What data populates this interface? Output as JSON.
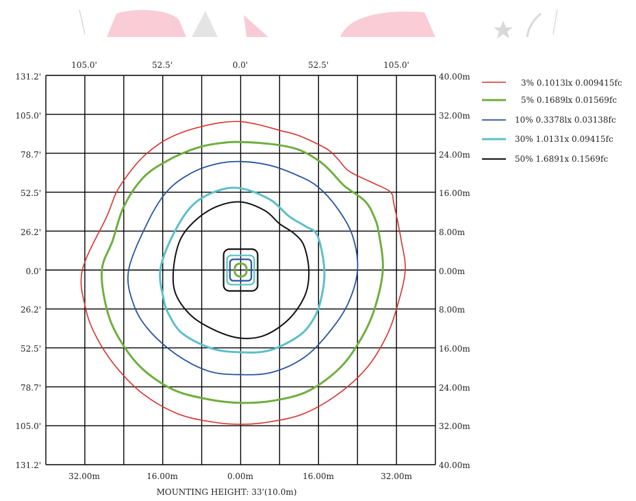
{
  "chart_data": {
    "type": "contour",
    "top_ticks": [
      "105.0'",
      "52.5'",
      "0.0'",
      "52.5'",
      "105.0'"
    ],
    "bottom_ticks": [
      "32.00m",
      "16.00m",
      "0.00m",
      "16.00m",
      "32.00m"
    ],
    "left_ticks": [
      "131.2'",
      "105.0'",
      "78.7'",
      "52.5'",
      "26.2'",
      "0.0'",
      "26.2'",
      "52.5'",
      "78.7'",
      "105.0'",
      "131.2'"
    ],
    "right_ticks": [
      "40.00m",
      "32.00m",
      "24.00m",
      "16.00m",
      "8.00m",
      "0.00m",
      "8.00m",
      "16.00m",
      "24.00m",
      "32.00m",
      "40.00m"
    ],
    "x_range_m": [
      -40,
      40
    ],
    "y_range_m": [
      -40,
      40
    ],
    "grid": true,
    "grid_step_m": 8,
    "xlabel": "MOUNTING HEIGHT: 33'(10.0m)",
    "legend_position": "top-right",
    "series": [
      {
        "name": "3% 0.1013lx 0.009415fc",
        "color": "#d9302b",
        "points": [
          [
            0,
            30.5
          ],
          [
            -4,
            30.3
          ],
          [
            -8,
            29.5
          ],
          [
            -12,
            28.3
          ],
          [
            -16,
            26.4
          ],
          [
            -20,
            23.3
          ],
          [
            -23,
            19.8
          ],
          [
            -25.5,
            16
          ],
          [
            -27.5,
            11
          ],
          [
            -32.5,
            0
          ],
          [
            -31.8,
            -8
          ],
          [
            -29.5,
            -14
          ],
          [
            -25.5,
            -20
          ],
          [
            -20,
            -25.5
          ],
          [
            -13,
            -29.5
          ],
          [
            -6,
            -31.2
          ],
          [
            0,
            -31.7
          ],
          [
            6,
            -31.2
          ],
          [
            13,
            -29.5
          ],
          [
            20,
            -25.5
          ],
          [
            26,
            -20
          ],
          [
            30,
            -13.5
          ],
          [
            32.3,
            -7
          ],
          [
            33.8,
            0
          ],
          [
            33,
            6
          ],
          [
            31.5,
            13.5
          ],
          [
            30.8,
            16
          ],
          [
            27.6,
            17.7
          ],
          [
            25,
            18.9
          ],
          [
            22,
            20.5
          ],
          [
            19.8,
            23
          ],
          [
            17.5,
            25
          ],
          [
            12,
            27.6
          ],
          [
            8,
            28.7
          ],
          [
            4,
            29.8
          ]
        ]
      },
      {
        "name": "5% 0.1689lx 0.01569fc",
        "color": "#6fae3e",
        "points": [
          [
            0,
            26.3
          ],
          [
            -4,
            26.1
          ],
          [
            -9,
            25.1
          ],
          [
            -15,
            22.5
          ],
          [
            -20,
            19
          ],
          [
            -24,
            13
          ],
          [
            -26.3,
            6
          ],
          [
            -28.5,
            0
          ],
          [
            -27.5,
            -8
          ],
          [
            -25,
            -14
          ],
          [
            -20.5,
            -20
          ],
          [
            -14,
            -24.5
          ],
          [
            -7,
            -26.5
          ],
          [
            0,
            -27.3
          ],
          [
            7,
            -26.8
          ],
          [
            14,
            -24.8
          ],
          [
            20.5,
            -20
          ],
          [
            24.8,
            -14
          ],
          [
            27.5,
            -8
          ],
          [
            29.2,
            0
          ],
          [
            28.4,
            7.5
          ],
          [
            27.4,
            11
          ],
          [
            25.5,
            14.2
          ],
          [
            21.3,
            17.3
          ],
          [
            18.5,
            20.3
          ],
          [
            16,
            22.5
          ],
          [
            12,
            24.7
          ],
          [
            7,
            25.8
          ]
        ]
      },
      {
        "name": "10% 0.3378lx 0.03138fc",
        "color": "#26539f",
        "points": [
          [
            0,
            22.3
          ],
          [
            -5,
            21.8
          ],
          [
            -10,
            20
          ],
          [
            -15,
            16.3
          ],
          [
            -19,
            10
          ],
          [
            -23,
            0
          ],
          [
            -22,
            -7
          ],
          [
            -18.8,
            -12.4
          ],
          [
            -13,
            -17.5
          ],
          [
            -6.5,
            -20.8
          ],
          [
            0,
            -21.5
          ],
          [
            6.5,
            -21
          ],
          [
            13,
            -18
          ],
          [
            18,
            -13
          ],
          [
            22,
            -7
          ],
          [
            24,
            0
          ],
          [
            23,
            7
          ],
          [
            20,
            12.5
          ],
          [
            16,
            17
          ],
          [
            12,
            19.3
          ],
          [
            6,
            21.5
          ]
        ]
      },
      {
        "name": "30% 1.0131x 0.09415fc",
        "color": "#5bbfc8",
        "points": [
          [
            0,
            16.8
          ],
          [
            -5,
            16.2
          ],
          [
            -10,
            13.2
          ],
          [
            -14,
            7
          ],
          [
            -16.5,
            0
          ],
          [
            -15.8,
            -6
          ],
          [
            -14.8,
            -9
          ],
          [
            -12,
            -13
          ],
          [
            -6,
            -16.1
          ],
          [
            0,
            -16.9
          ],
          [
            6,
            -16.5
          ],
          [
            12,
            -13.5
          ],
          [
            15,
            -10
          ],
          [
            16.5,
            -6
          ],
          [
            17.2,
            0
          ],
          [
            15.8,
            7
          ],
          [
            13.3,
            9
          ],
          [
            10,
            11
          ],
          [
            6,
            14.5
          ]
        ]
      },
      {
        "name": "50% 1.6891x 0.1569fc",
        "color": "#111111",
        "points": [
          [
            0,
            14
          ],
          [
            -5,
            13
          ],
          [
            -9.5,
            10
          ],
          [
            -12.5,
            6
          ],
          [
            -13.8,
            0
          ],
          [
            -13.3,
            -5
          ],
          [
            -10,
            -9.5
          ],
          [
            -5,
            -12.5
          ],
          [
            0,
            -14
          ],
          [
            5,
            -13.4
          ],
          [
            10,
            -10
          ],
          [
            13.3,
            -5
          ],
          [
            14,
            0
          ],
          [
            13,
            5
          ],
          [
            11,
            7.5
          ],
          [
            8,
            9.5
          ],
          [
            5,
            12.2
          ]
        ]
      }
    ],
    "inner_loops": [
      {
        "color": "#111111",
        "half_w": 3.5,
        "half_h": 4.3,
        "r": 1.2
      },
      {
        "color": "#5bbfc8",
        "half_w": 2.8,
        "half_h": 3.0,
        "r": 0.9
      },
      {
        "color": "#26539f",
        "half_w": 2.2,
        "half_h": 2.2,
        "r": 0.7
      },
      {
        "color": "#6fae3e",
        "half_w": 1.2,
        "half_h": 1.3,
        "r": 1.0
      }
    ]
  }
}
